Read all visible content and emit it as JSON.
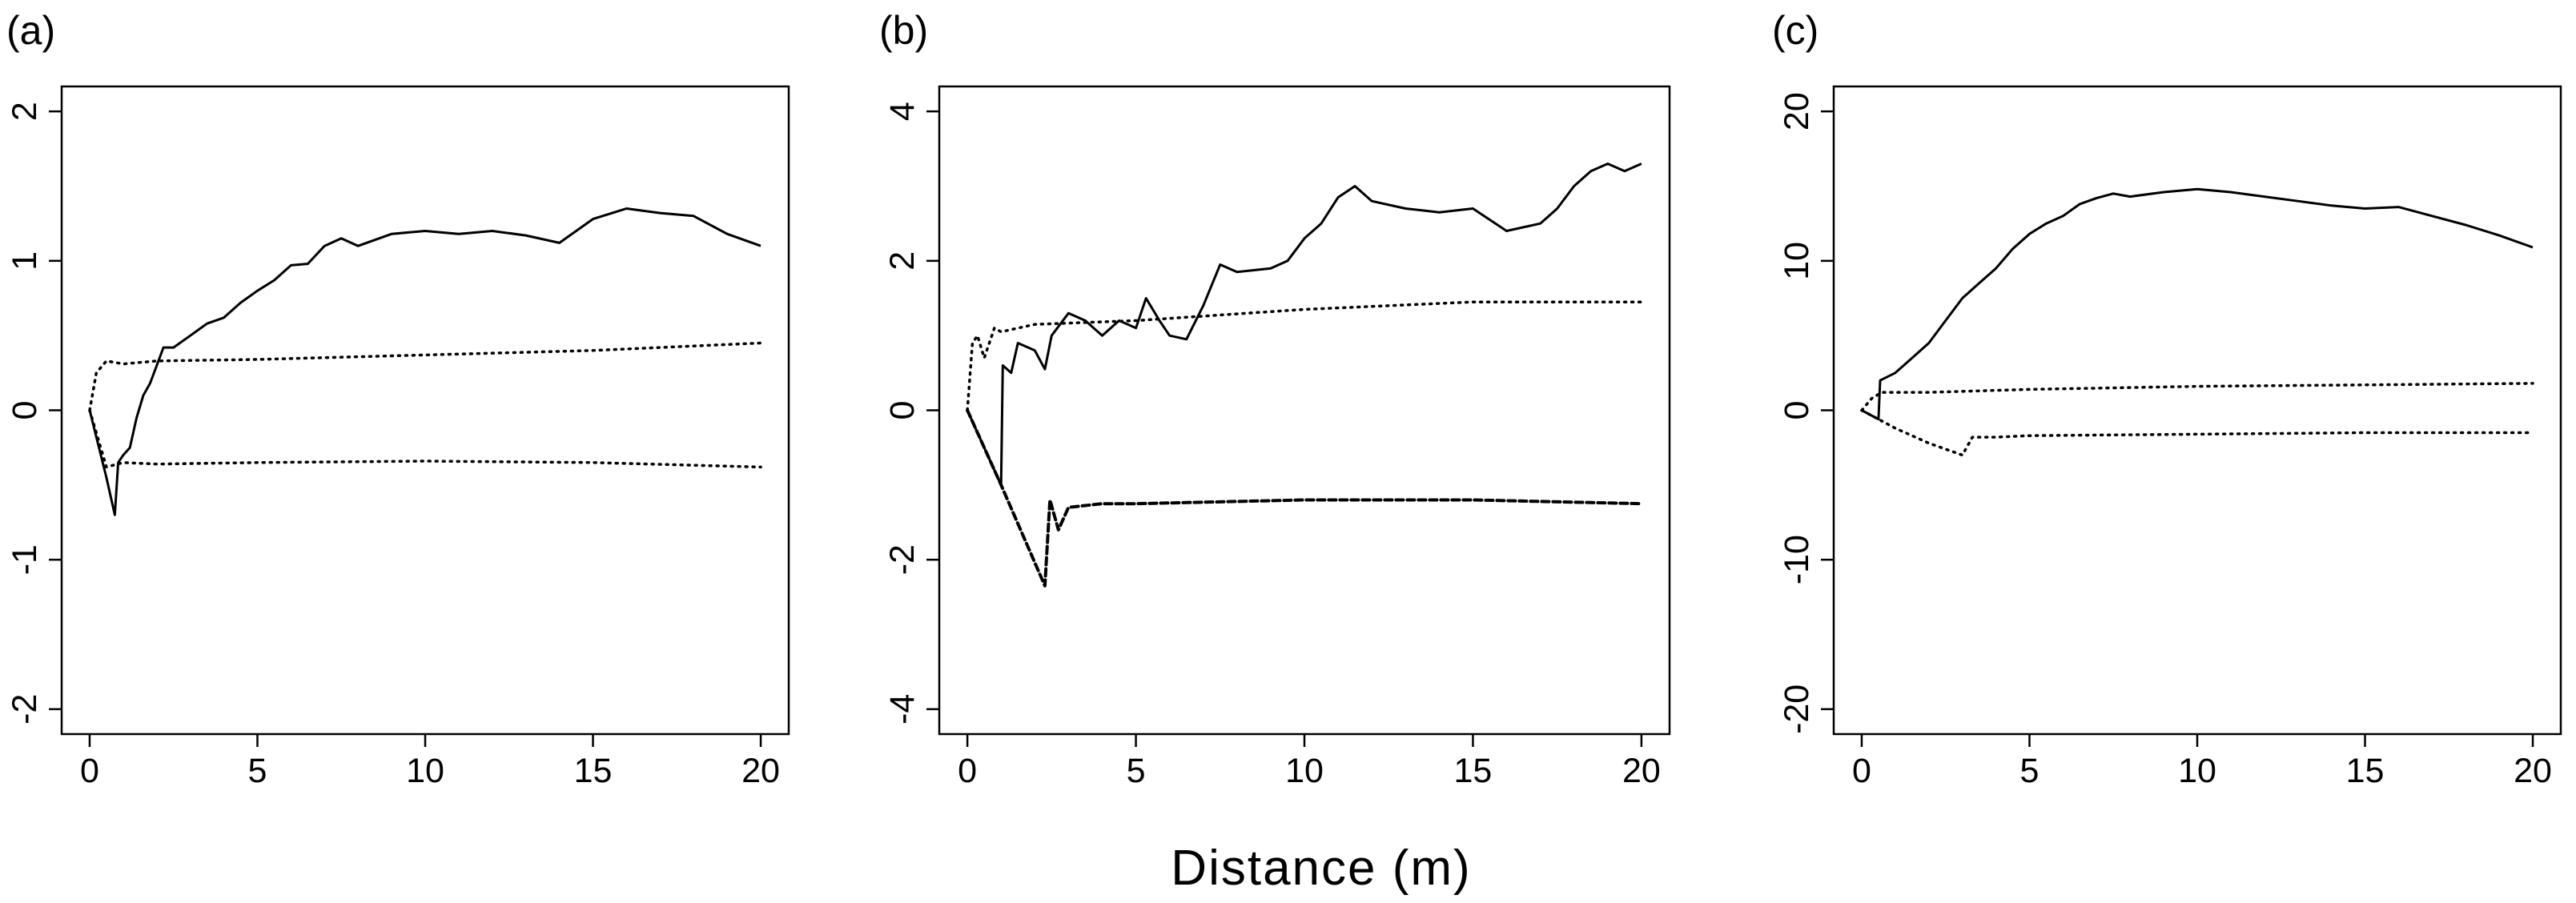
{
  "figure": {
    "xlabel": "Distance (m)"
  },
  "chart_data": [
    {
      "type": "line",
      "panel_label": "(a)",
      "xlim": [
        0,
        20
      ],
      "ylim": [
        -2,
        2
      ],
      "x_ticks": [
        0,
        5,
        10,
        15,
        20
      ],
      "y_ticks": [
        -2,
        -1,
        0,
        1,
        2
      ],
      "grid": false,
      "series": [
        {
          "style": "solid",
          "points": [
            [
              0,
              0
            ],
            [
              0.5,
              -0.45
            ],
            [
              0.75,
              -0.7
            ],
            [
              0.85,
              -0.35
            ],
            [
              1.0,
              -0.3
            ],
            [
              1.2,
              -0.25
            ],
            [
              1.4,
              -0.05
            ],
            [
              1.6,
              0.1
            ],
            [
              1.8,
              0.18
            ],
            [
              2.0,
              0.3
            ],
            [
              2.2,
              0.42
            ],
            [
              2.5,
              0.42
            ],
            [
              3.0,
              0.5
            ],
            [
              3.5,
              0.58
            ],
            [
              4.0,
              0.62
            ],
            [
              4.5,
              0.72
            ],
            [
              5.0,
              0.8
            ],
            [
              5.5,
              0.87
            ],
            [
              6.0,
              0.97
            ],
            [
              6.5,
              0.98
            ],
            [
              7.0,
              1.1
            ],
            [
              7.5,
              1.15
            ],
            [
              8.0,
              1.1
            ],
            [
              9.0,
              1.18
            ],
            [
              10.0,
              1.2
            ],
            [
              11.0,
              1.18
            ],
            [
              12.0,
              1.2
            ],
            [
              13.0,
              1.17
            ],
            [
              14.0,
              1.12
            ],
            [
              15.0,
              1.28
            ],
            [
              16.0,
              1.35
            ],
            [
              17.0,
              1.32
            ],
            [
              18.0,
              1.3
            ],
            [
              19.0,
              1.18
            ],
            [
              20.0,
              1.1
            ]
          ]
        },
        {
          "style": "dotted",
          "points": [
            [
              0,
              0
            ],
            [
              0.2,
              0.25
            ],
            [
              0.5,
              0.33
            ],
            [
              1.0,
              0.31
            ],
            [
              2.0,
              0.33
            ],
            [
              5.0,
              0.34
            ],
            [
              10.0,
              0.37
            ],
            [
              15.0,
              0.4
            ],
            [
              20.0,
              0.45
            ]
          ]
        },
        {
          "style": "dotted",
          "points": [
            [
              0,
              0
            ],
            [
              0.5,
              -0.38
            ],
            [
              1.0,
              -0.35
            ],
            [
              2.0,
              -0.36
            ],
            [
              5.0,
              -0.35
            ],
            [
              10.0,
              -0.34
            ],
            [
              15.0,
              -0.35
            ],
            [
              20.0,
              -0.38
            ]
          ]
        }
      ]
    },
    {
      "type": "line",
      "panel_label": "(b)",
      "xlim": [
        0,
        20
      ],
      "ylim": [
        -4,
        4
      ],
      "x_ticks": [
        0,
        5,
        10,
        15,
        20
      ],
      "y_ticks": [
        -4,
        -2,
        0,
        2,
        4
      ],
      "grid": false,
      "series": [
        {
          "style": "solid",
          "points": [
            [
              0,
              0
            ],
            [
              1.0,
              -1.0
            ],
            [
              1.05,
              0.6
            ],
            [
              1.3,
              0.5
            ],
            [
              1.5,
              0.9
            ],
            [
              2.0,
              0.8
            ],
            [
              2.3,
              0.55
            ],
            [
              2.5,
              1.0
            ],
            [
              3.0,
              1.3
            ],
            [
              3.5,
              1.2
            ],
            [
              4.0,
              1.0
            ],
            [
              4.5,
              1.2
            ],
            [
              5.0,
              1.1
            ],
            [
              5.3,
              1.5
            ],
            [
              5.7,
              1.2
            ],
            [
              6.0,
              1.0
            ],
            [
              6.5,
              0.95
            ],
            [
              7.0,
              1.4
            ],
            [
              7.5,
              1.95
            ],
            [
              8.0,
              1.85
            ],
            [
              9.0,
              1.9
            ],
            [
              9.5,
              2.0
            ],
            [
              10.0,
              2.3
            ],
            [
              10.5,
              2.5
            ],
            [
              11.0,
              2.85
            ],
            [
              11.5,
              3.0
            ],
            [
              12.0,
              2.8
            ],
            [
              13.0,
              2.7
            ],
            [
              14.0,
              2.65
            ],
            [
              15.0,
              2.7
            ],
            [
              16.0,
              2.4
            ],
            [
              17.0,
              2.5
            ],
            [
              17.5,
              2.7
            ],
            [
              18.0,
              3.0
            ],
            [
              18.5,
              3.2
            ],
            [
              19.0,
              3.3
            ],
            [
              19.5,
              3.2
            ],
            [
              20.0,
              3.3
            ]
          ]
        },
        {
          "style": "dotted",
          "points": [
            [
              0,
              0
            ],
            [
              0.15,
              0.9
            ],
            [
              0.3,
              1.0
            ],
            [
              0.5,
              0.7
            ],
            [
              0.8,
              1.1
            ],
            [
              1.0,
              1.05
            ],
            [
              2.0,
              1.15
            ],
            [
              5.0,
              1.2
            ],
            [
              10.0,
              1.35
            ],
            [
              15.0,
              1.45
            ],
            [
              20.0,
              1.45
            ]
          ]
        },
        {
          "style": "dashed",
          "points": [
            [
              0,
              0
            ],
            [
              1.0,
              -1.0
            ],
            [
              2.3,
              -2.35
            ],
            [
              2.45,
              -1.2
            ],
            [
              2.7,
              -1.6
            ],
            [
              3.0,
              -1.3
            ],
            [
              4.0,
              -1.25
            ],
            [
              5.0,
              -1.25
            ],
            [
              10.0,
              -1.2
            ],
            [
              15.0,
              -1.2
            ],
            [
              20.0,
              -1.25
            ]
          ]
        }
      ]
    },
    {
      "type": "line",
      "panel_label": "(c)",
      "xlim": [
        0,
        20
      ],
      "ylim": [
        -20,
        20
      ],
      "x_ticks": [
        0,
        5,
        10,
        15,
        20
      ],
      "y_ticks": [
        -20,
        -10,
        0,
        10,
        20
      ],
      "grid": false,
      "series": [
        {
          "style": "solid",
          "points": [
            [
              0,
              0
            ],
            [
              0.5,
              -0.6
            ],
            [
              0.55,
              2.0
            ],
            [
              1.0,
              2.5
            ],
            [
              1.5,
              3.5
            ],
            [
              2.0,
              4.5
            ],
            [
              2.5,
              6.0
            ],
            [
              3.0,
              7.5
            ],
            [
              3.5,
              8.5
            ],
            [
              4.0,
              9.5
            ],
            [
              4.5,
              10.8
            ],
            [
              5.0,
              11.8
            ],
            [
              5.5,
              12.5
            ],
            [
              6.0,
              13.0
            ],
            [
              6.5,
              13.8
            ],
            [
              7.0,
              14.2
            ],
            [
              7.5,
              14.5
            ],
            [
              8.0,
              14.3
            ],
            [
              9.0,
              14.6
            ],
            [
              10.0,
              14.8
            ],
            [
              11.0,
              14.6
            ],
            [
              12.0,
              14.3
            ],
            [
              13.0,
              14.0
            ],
            [
              14.0,
              13.7
            ],
            [
              15.0,
              13.5
            ],
            [
              16.0,
              13.6
            ],
            [
              17.0,
              13.0
            ],
            [
              18.0,
              12.4
            ],
            [
              19.0,
              11.7
            ],
            [
              20.0,
              10.9
            ]
          ]
        },
        {
          "style": "dotted",
          "points": [
            [
              0,
              0
            ],
            [
              0.3,
              0.8
            ],
            [
              0.6,
              1.2
            ],
            [
              2.0,
              1.2
            ],
            [
              5.0,
              1.4
            ],
            [
              10.0,
              1.6
            ],
            [
              15.0,
              1.7
            ],
            [
              20.0,
              1.8
            ]
          ]
        },
        {
          "style": "dotted",
          "points": [
            [
              0,
              0
            ],
            [
              1.0,
              -1.2
            ],
            [
              2.0,
              -2.2
            ],
            [
              3.0,
              -3.0
            ],
            [
              3.3,
              -1.8
            ],
            [
              4.0,
              -1.8
            ],
            [
              5.0,
              -1.7
            ],
            [
              10.0,
              -1.6
            ],
            [
              15.0,
              -1.5
            ],
            [
              20.0,
              -1.5
            ]
          ]
        }
      ]
    }
  ]
}
